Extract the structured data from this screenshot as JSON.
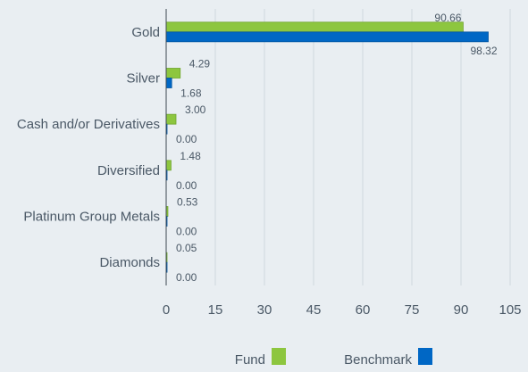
{
  "chart_data": {
    "type": "bar",
    "orientation": "horizontal",
    "categories": [
      "Gold",
      "Silver",
      "Cash and/or Derivatives",
      "Diversified",
      "Platinum Group Metals",
      "Diamonds"
    ],
    "series": [
      {
        "name": "Fund",
        "values": [
          90.66,
          4.29,
          3.0,
          1.48,
          0.53,
          0.05
        ],
        "labels": [
          "90.66",
          "4.29",
          "3.00",
          "1.48",
          "0.53",
          "0.05"
        ],
        "color": "#8dc63f"
      },
      {
        "name": "Benchmark",
        "values": [
          98.32,
          1.68,
          0.0,
          0.0,
          0.0,
          0.0
        ],
        "labels": [
          "98.32",
          "1.68",
          "0.00",
          "0.00",
          "0.00",
          "0.00"
        ],
        "color": "#0067c5"
      }
    ],
    "xlim": [
      0,
      105
    ],
    "xticks": [
      "0",
      "15",
      "30",
      "45",
      "60",
      "75",
      "90",
      "105"
    ],
    "grid": true,
    "legend_position": "bottom"
  }
}
